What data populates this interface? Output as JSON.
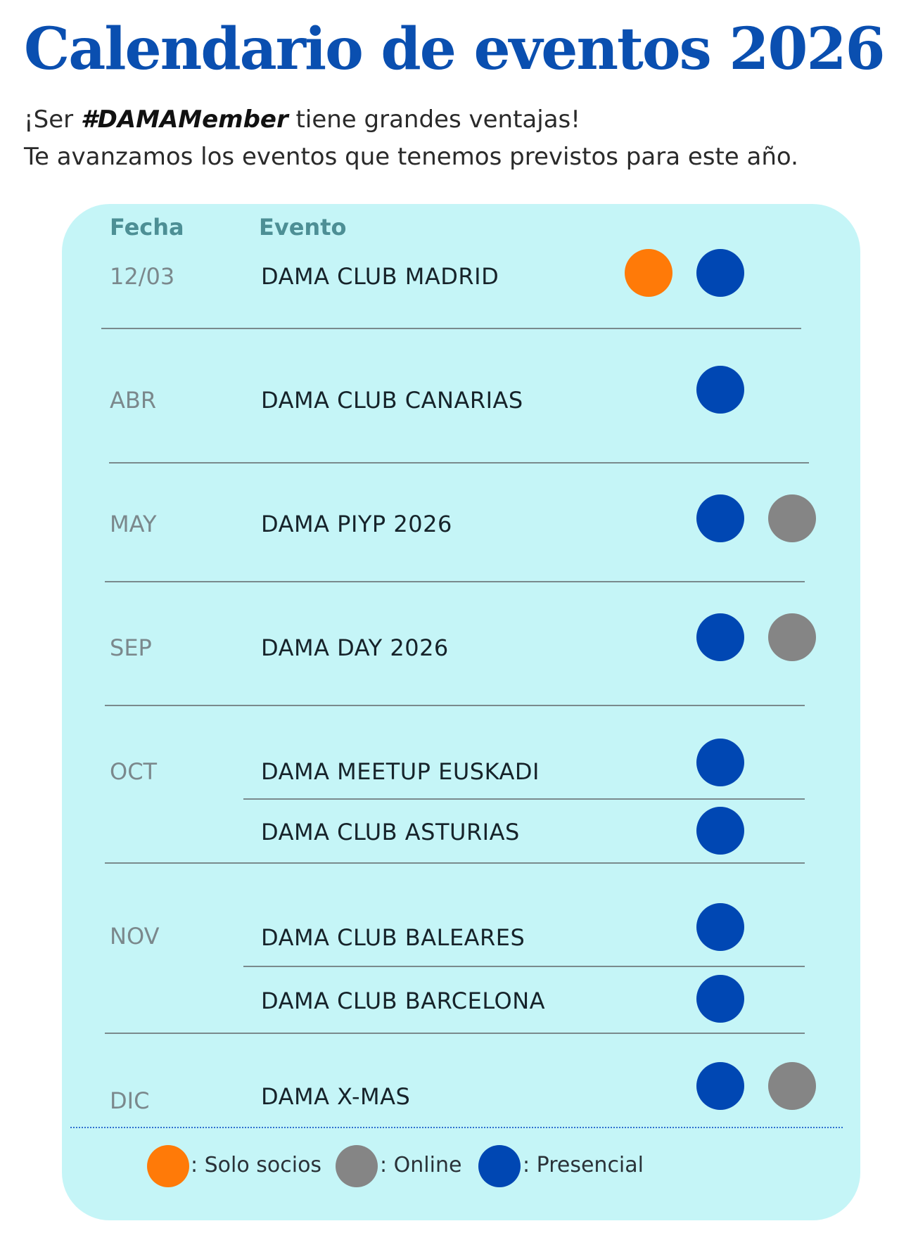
{
  "title": "Calendario de eventos 2026",
  "intro": {
    "prefix": "¡Ser ",
    "hashtag": "#DAMAMember",
    "suffix": " tiene grandes ventajas!",
    "line2": "Te avanzamos los eventos que tenemos previstos para este año."
  },
  "table": {
    "header_date": "Fecha",
    "header_event": "Evento",
    "rows": [
      {
        "date": "12/03",
        "event": "DAMA CLUB MADRID",
        "types": [
          "solo-socios",
          "presencial"
        ]
      },
      {
        "date": "ABR",
        "event": "DAMA CLUB CANARIAS",
        "types": [
          "presencial"
        ]
      },
      {
        "date": "MAY",
        "event": "DAMA PIYP 2026",
        "types": [
          "presencial",
          "online"
        ]
      },
      {
        "date": "SEP",
        "event": "DAMA DAY 2026",
        "types": [
          "presencial",
          "online"
        ]
      },
      {
        "date": "OCT",
        "event": "DAMA MEETUP EUSKADI",
        "types": [
          "presencial"
        ]
      },
      {
        "date": "",
        "event": "DAMA CLUB ASTURIAS",
        "types": [
          "presencial"
        ]
      },
      {
        "date": "NOV",
        "event": "DAMA CLUB BALEARES",
        "types": [
          "presencial"
        ]
      },
      {
        "date": "",
        "event": "DAMA CLUB BARCELONA",
        "types": [
          "presencial"
        ]
      },
      {
        "date": "DIC",
        "event": "DAMA X-MAS",
        "types": [
          "presencial",
          "online"
        ]
      }
    ]
  },
  "legend": {
    "solo_socios": ": Solo socios",
    "online": ": Online",
    "presencial": ": Presencial"
  },
  "colors": {
    "solo_socios": "#ff7a08",
    "online": "#858585",
    "presencial": "#0047b3",
    "title": "#0a4fb0",
    "card": "#c5f5f7"
  }
}
